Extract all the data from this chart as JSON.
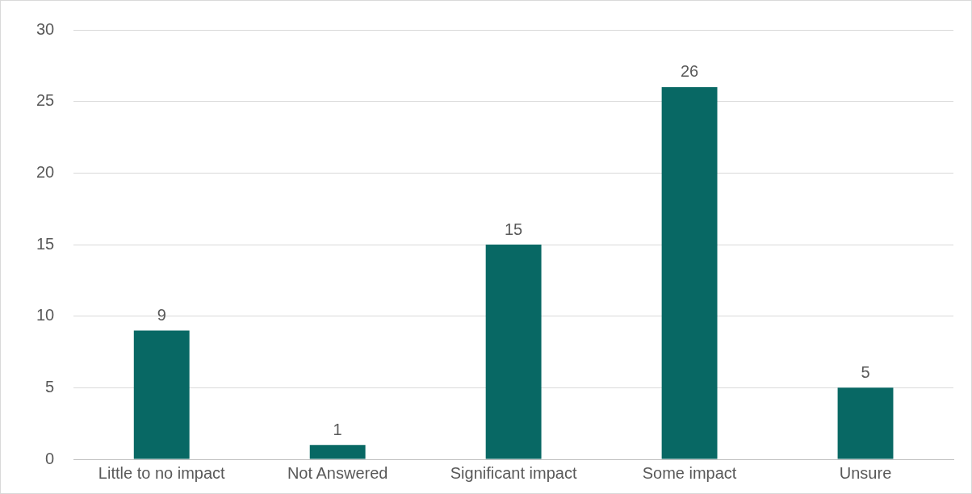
{
  "chart_data": {
    "type": "bar",
    "categories": [
      "Little to no impact",
      "Not Answered",
      "Significant impact",
      "Some impact",
      "Unsure"
    ],
    "values": [
      9,
      1,
      15,
      26,
      5
    ],
    "color": "#086864",
    "ylim": [
      0,
      30
    ],
    "yticks": [
      0,
      5,
      10,
      15,
      20,
      25,
      30
    ],
    "grid": "y",
    "legend": false,
    "data_labels": true
  }
}
